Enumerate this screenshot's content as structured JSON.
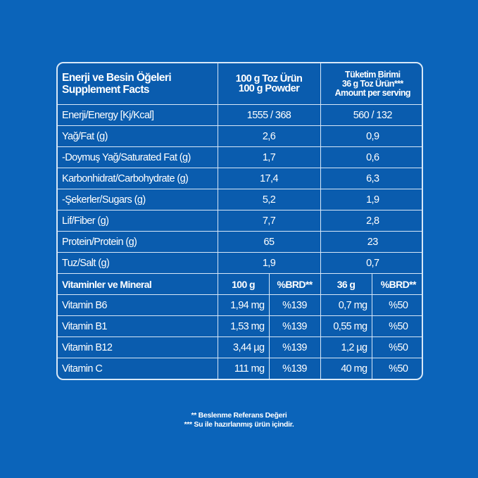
{
  "header": {
    "title_tr": "Enerji ve Besin Öğeleri",
    "title_en": "Supplement Facts",
    "col1_line1": "100 g Toz Ürün",
    "col1_line2": "100 g Powder",
    "col2_line1": "Tüketim Birimi",
    "col2_line2": "36 g Toz Ürün***",
    "col2_line3": "Amount per serving"
  },
  "nutrients": [
    {
      "name": "Enerji/Energy [Kj/Kcal]",
      "per100": "1555 / 368",
      "perServing": "560 / 132"
    },
    {
      "name": "Yağ/Fat (g)",
      "per100": "2,6",
      "perServing": "0,9"
    },
    {
      "name": "-Doymuş Yağ/Saturated Fat (g)",
      "per100": "1,7",
      "perServing": "0,6"
    },
    {
      "name": "Karbonhidrat/Carbohydrate (g)",
      "per100": "17,4",
      "perServing": "6,3"
    },
    {
      "name": "-Şekerler/Sugars (g)",
      "per100": "5,2",
      "perServing": "1,9"
    },
    {
      "name": "Lif/Fiber (g)",
      "per100": "7,7",
      "perServing": "2,8"
    },
    {
      "name": "Protein/Protein (g)",
      "per100": "65",
      "perServing": "23"
    },
    {
      "name": "Tuz/Salt (g)",
      "per100": "1,9",
      "perServing": "0,7"
    }
  ],
  "vitamins_header": {
    "title": "Vitaminler ve Mineral",
    "c1": "100 g",
    "c2": "%BRD**",
    "c3": "36 g",
    "c4": "%BRD**"
  },
  "vitamins": [
    {
      "name": "Vitamin B6",
      "per100": "1,94 mg",
      "brd100": "%139",
      "perServing": "0,7 mg",
      "brdServing": "%50"
    },
    {
      "name": "Vitamin B1",
      "per100": "1,53 mg",
      "brd100": "%139",
      "perServing": "0,55 mg",
      "brdServing": "%50"
    },
    {
      "name": "Vitamin B12",
      "per100": "3,44 µg",
      "brd100": "%139",
      "perServing": "1,2 µg",
      "brdServing": "%50"
    },
    {
      "name": "Vitamin C",
      "per100": "111 mg",
      "brd100": "%139",
      "perServing": "40 mg",
      "brdServing": "%50"
    }
  ],
  "footnotes": [
    "** Beslenme Referans Değeri",
    "*** Su ile hazırlanmış ürün içindir."
  ],
  "colors": {
    "background": "#0b64ba",
    "table": "#0a5cae",
    "border": "#d8e8f8"
  }
}
